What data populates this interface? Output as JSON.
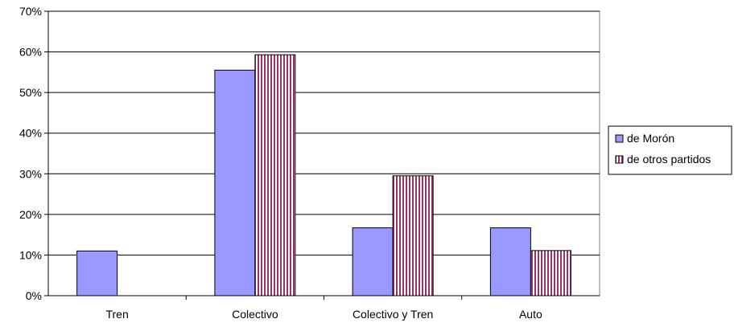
{
  "chart_data": {
    "type": "bar",
    "categories": [
      "Tren",
      "Colectivo",
      "Colectivo y Tren",
      "Auto"
    ],
    "series": [
      {
        "name": "de Morón",
        "values": [
          11,
          55.5,
          16.7,
          16.7
        ],
        "color": "#9999ff",
        "pattern": "solid"
      },
      {
        "name": "de otros partidos",
        "values": [
          0,
          59.3,
          29.5,
          11.1
        ],
        "color": "#993366",
        "pattern": "vertical-stripes"
      }
    ],
    "yticks": [
      "0%",
      "10%",
      "20%",
      "30%",
      "40%",
      "50%",
      "60%",
      "70%"
    ],
    "ylim": [
      0,
      70
    ],
    "grid": true,
    "legend": "right",
    "title": "",
    "xlabel": "",
    "ylabel": ""
  }
}
